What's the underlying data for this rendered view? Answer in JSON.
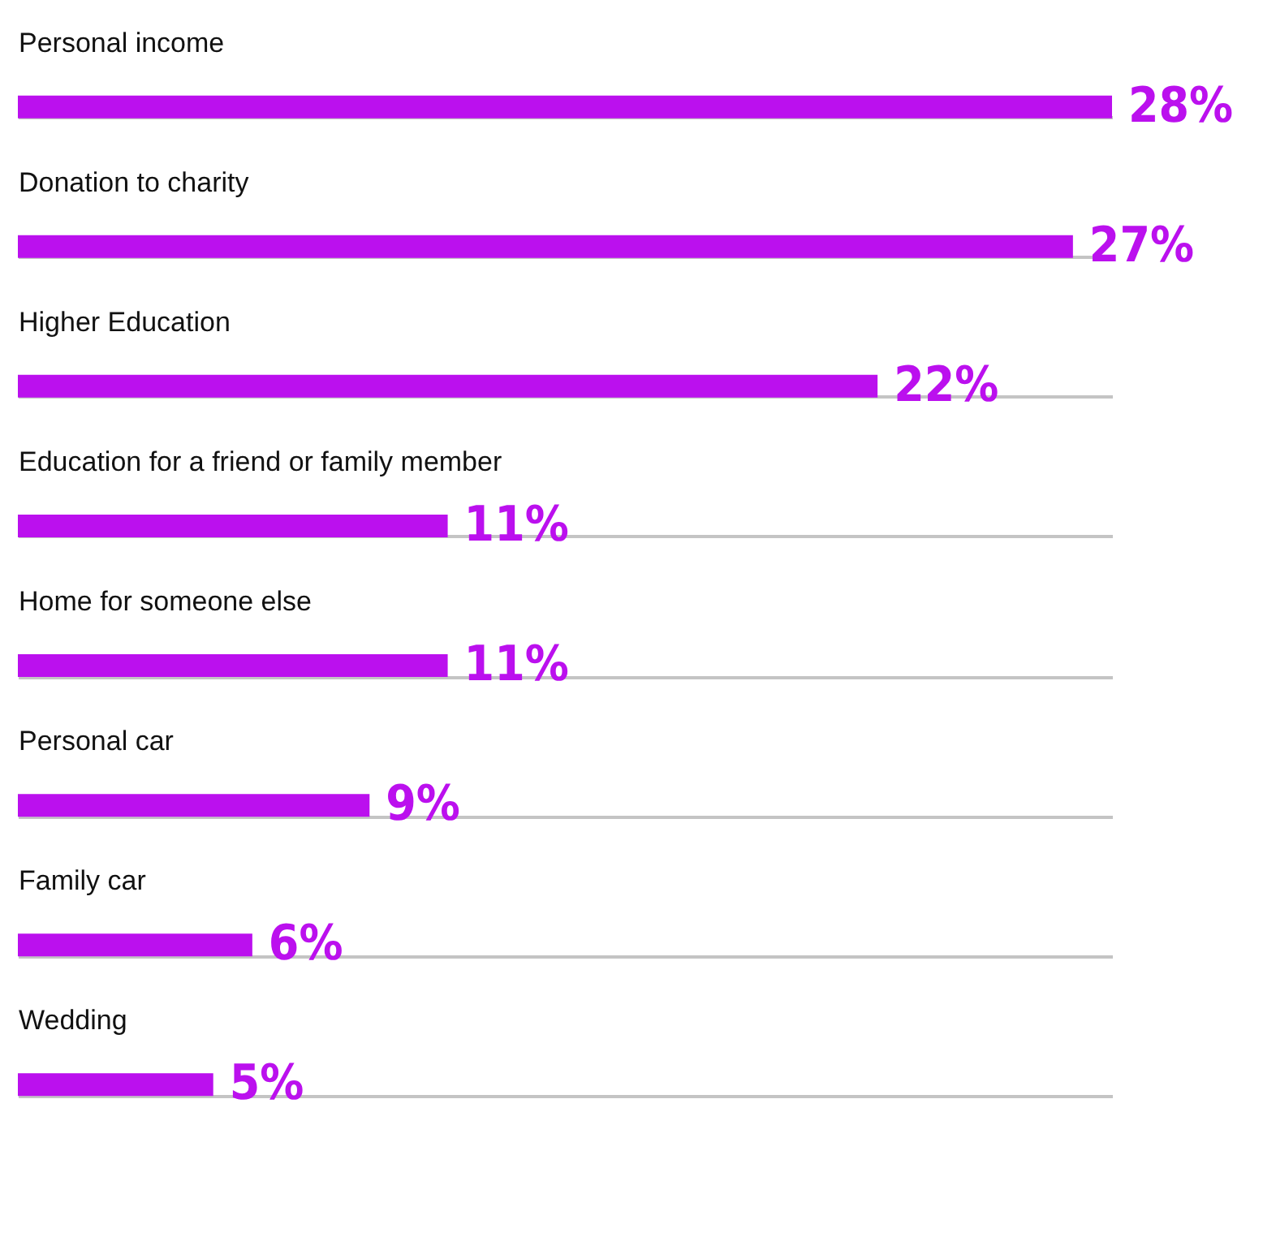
{
  "chart_data": {
    "type": "bar",
    "orientation": "horizontal",
    "categories": [
      "Personal income",
      "Donation to charity",
      "Higher Education",
      "Education for a friend or family member",
      "Home for someone else",
      "Personal car",
      "Family car",
      "Wedding"
    ],
    "values": [
      28,
      27,
      22,
      11,
      11,
      9,
      6,
      5
    ],
    "value_labels": [
      "28%",
      "27%",
      "22%",
      "11%",
      "11%",
      "9%",
      "6%",
      "5%"
    ],
    "color": "#bb10ee",
    "grid": "y",
    "tick_labels": "y"
  }
}
